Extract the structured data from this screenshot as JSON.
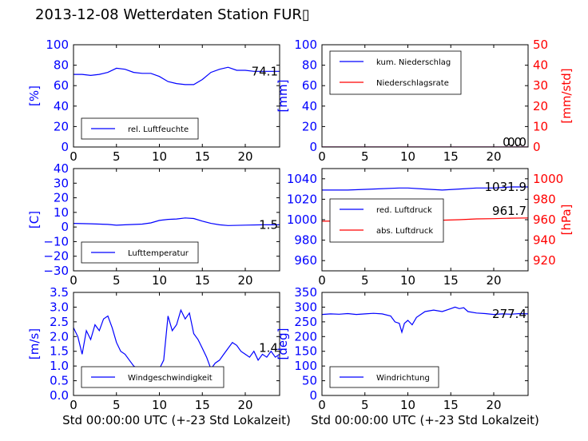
{
  "title": "2013-12-08 Wetterdaten Station FUR▯",
  "colors": {
    "blue": "#0000ff",
    "red": "#ff0000",
    "black": "#000000"
  },
  "chart_data": [
    {
      "id": "humidity",
      "type": "line",
      "xlim": [
        0,
        24
      ],
      "ylim": [
        0,
        100
      ],
      "xticks": [
        "0",
        "5",
        "10",
        "15",
        "20"
      ],
      "yticks": [
        "0",
        "20",
        "40",
        "60",
        "80",
        "100"
      ],
      "ylabel": "[%]",
      "ylabel_color": "#0000ff",
      "last_value": "74.1",
      "legend": {
        "placement": "lower-left",
        "entries": [
          {
            "name": "rel. Luftfeuchte",
            "color": "#0000ff"
          }
        ]
      },
      "series": [
        {
          "name": "rel. Luftfeuchte",
          "color": "#0000ff",
          "x": [
            0,
            1,
            2,
            3,
            4,
            5,
            6,
            7,
            8,
            9,
            10,
            11,
            12,
            13,
            14,
            15,
            16,
            17,
            18,
            19,
            20,
            21,
            22,
            23,
            24
          ],
          "y": [
            71,
            71,
            70,
            71,
            73,
            77,
            76,
            73,
            72,
            72,
            69,
            64,
            62,
            61,
            61,
            66,
            73,
            76,
            78,
            75,
            75,
            74,
            74,
            74,
            74
          ]
        }
      ]
    },
    {
      "id": "precip",
      "type": "line",
      "xlim": [
        0,
        24
      ],
      "ylim": [
        0,
        100
      ],
      "y2lim": [
        0,
        50
      ],
      "xticks": [
        "0",
        "5",
        "10",
        "15",
        "20"
      ],
      "yticks": [
        "0",
        "20",
        "40",
        "60",
        "80",
        "100"
      ],
      "y2ticks": [
        "0",
        "10",
        "20",
        "30",
        "40",
        "50"
      ],
      "ylabel": "[mm]",
      "ylabel_color": "#0000ff",
      "y2label": "[mm/std]",
      "y2label_color": "#ff0000",
      "last_value": "0.0",
      "last_value2": "0.0",
      "legend": {
        "placement": "upper-left",
        "entries": [
          {
            "name": "kum. Niederschlag",
            "color": "#0000ff"
          },
          {
            "name": "Niederschlagsrate",
            "color": "#ff0000"
          }
        ]
      },
      "series": [
        {
          "name": "kum. Niederschlag",
          "color": "#0000ff",
          "axis": "left",
          "x": [
            0,
            24
          ],
          "y": [
            0,
            0
          ]
        },
        {
          "name": "Niederschlagsrate",
          "color": "#ff0000",
          "axis": "right",
          "x": [
            0,
            24
          ],
          "y": [
            0,
            0
          ]
        }
      ]
    },
    {
      "id": "temperature",
      "type": "line",
      "xlim": [
        0,
        24
      ],
      "ylim": [
        -30,
        40
      ],
      "xticks": [
        "0",
        "5",
        "10",
        "15",
        "20"
      ],
      "yticks": [
        "−30",
        "−20",
        "−10",
        "0",
        "10",
        "20",
        "30",
        "40"
      ],
      "ylabel": "[C]",
      "ylabel_color": "#0000ff",
      "last_value": "1.5",
      "legend": {
        "placement": "lower-left",
        "entries": [
          {
            "name": "Lufttemperatur",
            "color": "#0000ff"
          }
        ]
      },
      "series": [
        {
          "name": "Lufttemperatur",
          "color": "#0000ff",
          "x": [
            0,
            2,
            4,
            5,
            6,
            8,
            9,
            10,
            11,
            12,
            13,
            14,
            15,
            16,
            17,
            18,
            20,
            22,
            24
          ],
          "y": [
            2.5,
            2.2,
            1.8,
            1.2,
            1.5,
            2.0,
            2.8,
            4.5,
            5.2,
            5.5,
            6.2,
            5.8,
            4.0,
            2.5,
            1.5,
            1.0,
            1.3,
            1.5,
            1.5
          ]
        }
      ]
    },
    {
      "id": "pressure",
      "type": "line",
      "xlim": [
        0,
        24
      ],
      "ylim": [
        950,
        1050
      ],
      "y2lim": [
        910,
        1010
      ],
      "xticks": [
        "0",
        "5",
        "10",
        "15",
        "20"
      ],
      "yticks": [
        "960",
        "980",
        "1000",
        "1020",
        "1040"
      ],
      "y2ticks": [
        "920",
        "940",
        "960",
        "980",
        "1000"
      ],
      "y2label": "[hPa]",
      "y2label_color": "#ff0000",
      "last_value": "1031.9",
      "last_value2": "961.7",
      "legend": {
        "placement": "lower-left",
        "entries": [
          {
            "name": "red. Luftdruck",
            "color": "#0000ff"
          },
          {
            "name": "abs. Luftdruck",
            "color": "#ff0000"
          }
        ]
      },
      "series": [
        {
          "name": "red. Luftdruck",
          "color": "#0000ff",
          "axis": "left",
          "x": [
            0,
            3,
            6,
            9,
            10,
            12,
            14,
            16,
            18,
            20,
            22,
            24
          ],
          "y": [
            1029,
            1029,
            1030,
            1031,
            1031,
            1030,
            1029,
            1030,
            1031,
            1031,
            1032,
            1032
          ]
        },
        {
          "name": "abs. Luftdruck",
          "color": "#ff0000",
          "axis": "right",
          "x": [
            0,
            3,
            6,
            9,
            10,
            12,
            14,
            16,
            18,
            20,
            22,
            24
          ],
          "y": [
            958.5,
            958.8,
            959.8,
            960.8,
            960.8,
            960.3,
            959.5,
            960,
            960.8,
            961,
            961.5,
            961.7
          ]
        }
      ]
    },
    {
      "id": "windspeed",
      "type": "line",
      "xlim": [
        0,
        24
      ],
      "ylim": [
        0,
        3.5
      ],
      "xticks": [
        "0",
        "5",
        "10",
        "15",
        "20"
      ],
      "yticks": [
        "0.0",
        "0.5",
        "1.0",
        "1.5",
        "2.0",
        "2.5",
        "3.0",
        "3.5"
      ],
      "ylabel": "[m/s]",
      "ylabel_color": "#0000ff",
      "xlabel": "Std 00:00:00 UTC (+-23 Std Lokalzeit)",
      "last_value": "1.4",
      "legend": {
        "placement": "lower-left",
        "entries": [
          {
            "name": "Windgeschwindigkeit",
            "color": "#0000ff"
          }
        ]
      },
      "series": [
        {
          "name": "Windgeschwindigkeit",
          "color": "#0000ff",
          "x": [
            0,
            0.5,
            1,
            1.5,
            2,
            2.5,
            3,
            3.5,
            4,
            4.5,
            5,
            5.5,
            6,
            6.5,
            7,
            7.5,
            8,
            8.5,
            9,
            9.5,
            10,
            10.5,
            11,
            11.5,
            12,
            12.5,
            13,
            13.5,
            14,
            14.5,
            15,
            15.5,
            16,
            16.5,
            17,
            17.5,
            18,
            18.5,
            19,
            19.5,
            20,
            20.5,
            21,
            21.5,
            22,
            22.5,
            23,
            23.5,
            24
          ],
          "y": [
            2.3,
            2.0,
            1.4,
            2.2,
            1.9,
            2.4,
            2.2,
            2.6,
            2.7,
            2.3,
            1.8,
            1.5,
            1.4,
            1.2,
            1.0,
            0.9,
            0.7,
            0.6,
            0.4,
            0.6,
            0.9,
            1.2,
            2.7,
            2.2,
            2.4,
            2.9,
            2.6,
            2.8,
            2.1,
            1.9,
            1.6,
            1.3,
            0.9,
            1.1,
            1.2,
            1.4,
            1.6,
            1.8,
            1.7,
            1.5,
            1.4,
            1.3,
            1.5,
            1.2,
            1.4,
            1.3,
            1.5,
            1.3,
            1.4
          ]
        }
      ]
    },
    {
      "id": "winddir",
      "type": "line",
      "xlim": [
        0,
        24
      ],
      "ylim": [
        0,
        350
      ],
      "xticks": [
        "0",
        "5",
        "10",
        "15",
        "20"
      ],
      "yticks": [
        "0",
        "50",
        "100",
        "150",
        "200",
        "250",
        "300",
        "350"
      ],
      "ylabel": "[deg]",
      "ylabel_color": "#0000ff",
      "xlabel": "Std 00:00:00 UTC (+-23 Std Lokalzeit)",
      "last_value": "277.4",
      "legend": {
        "placement": "lower-left",
        "entries": [
          {
            "name": "Windrichtung",
            "color": "#0000ff"
          }
        ]
      },
      "series": [
        {
          "name": "Windrichtung",
          "color": "#0000ff",
          "x": [
            0,
            1,
            2,
            3,
            4,
            5,
            6,
            7,
            8,
            8.5,
            9,
            9.3,
            9.6,
            10,
            10.5,
            11,
            12,
            13,
            14,
            15,
            15.5,
            16,
            16.5,
            17,
            18,
            19,
            20,
            21,
            22,
            23,
            24
          ],
          "y": [
            275,
            277,
            276,
            278,
            275,
            277,
            279,
            277,
            270,
            250,
            245,
            215,
            245,
            255,
            240,
            265,
            285,
            290,
            285,
            295,
            300,
            295,
            298,
            285,
            280,
            278,
            275,
            277,
            276,
            278,
            277
          ]
        }
      ]
    }
  ]
}
